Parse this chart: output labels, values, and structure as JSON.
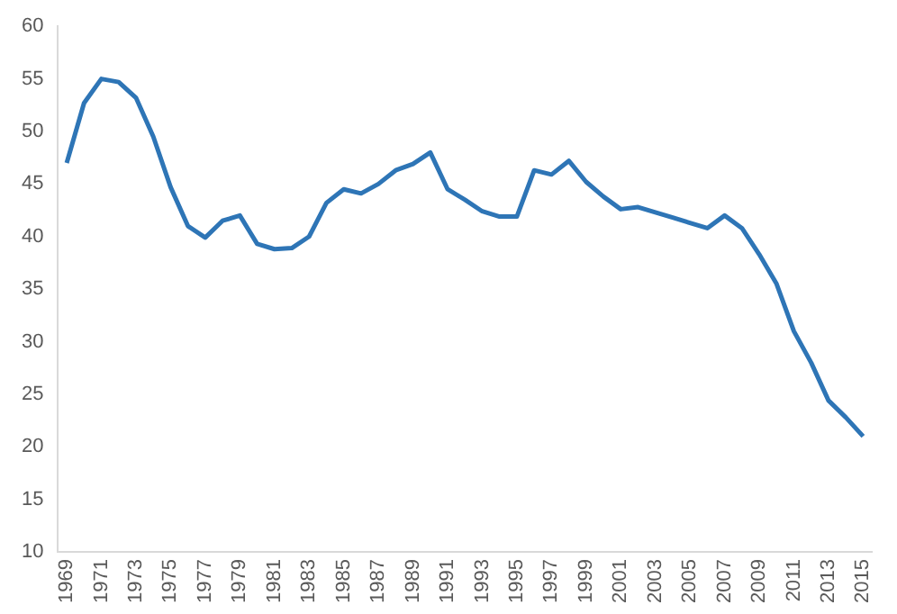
{
  "chart_data": {
    "type": "line",
    "categories": [
      "1969",
      null,
      "1971",
      null,
      "1973",
      null,
      "1975",
      null,
      "1977",
      null,
      "1979",
      null,
      "1981",
      null,
      "1983",
      null,
      "1985",
      null,
      "1987",
      null,
      "1989",
      null,
      "1991",
      null,
      "1993",
      null,
      "1995",
      null,
      "1997",
      null,
      "1999",
      null,
      "2001",
      null,
      "2003",
      null,
      "2005",
      null,
      "2007",
      null,
      "2009",
      null,
      "2011",
      null,
      "2013",
      null,
      "2015"
    ],
    "series": [
      {
        "color": "#2e75b6",
        "values": [
          47,
          52.7,
          55,
          54.7,
          53.2,
          49.5,
          44.7,
          41,
          39.9,
          41.5,
          42,
          39.3,
          38.8,
          38.9,
          40,
          43.2,
          44.5,
          44.1,
          45,
          46.3,
          46.9,
          48,
          44.5,
          43.5,
          42.4,
          41.9,
          41.9,
          46.3,
          45.9,
          47.2,
          45.2,
          43.8,
          42.6,
          42.8,
          42.3,
          41.8,
          41.3,
          40.8,
          42,
          40.8,
          38.3,
          35.5,
          31,
          28,
          24.4,
          22.8,
          21
        ]
      }
    ],
    "ylim": [
      10,
      60
    ],
    "yticks": [
      10,
      15,
      20,
      25,
      30,
      35,
      40,
      45,
      50,
      55,
      60
    ],
    "grid": false,
    "legend": false,
    "marker": "none",
    "line_style": "solid"
  }
}
